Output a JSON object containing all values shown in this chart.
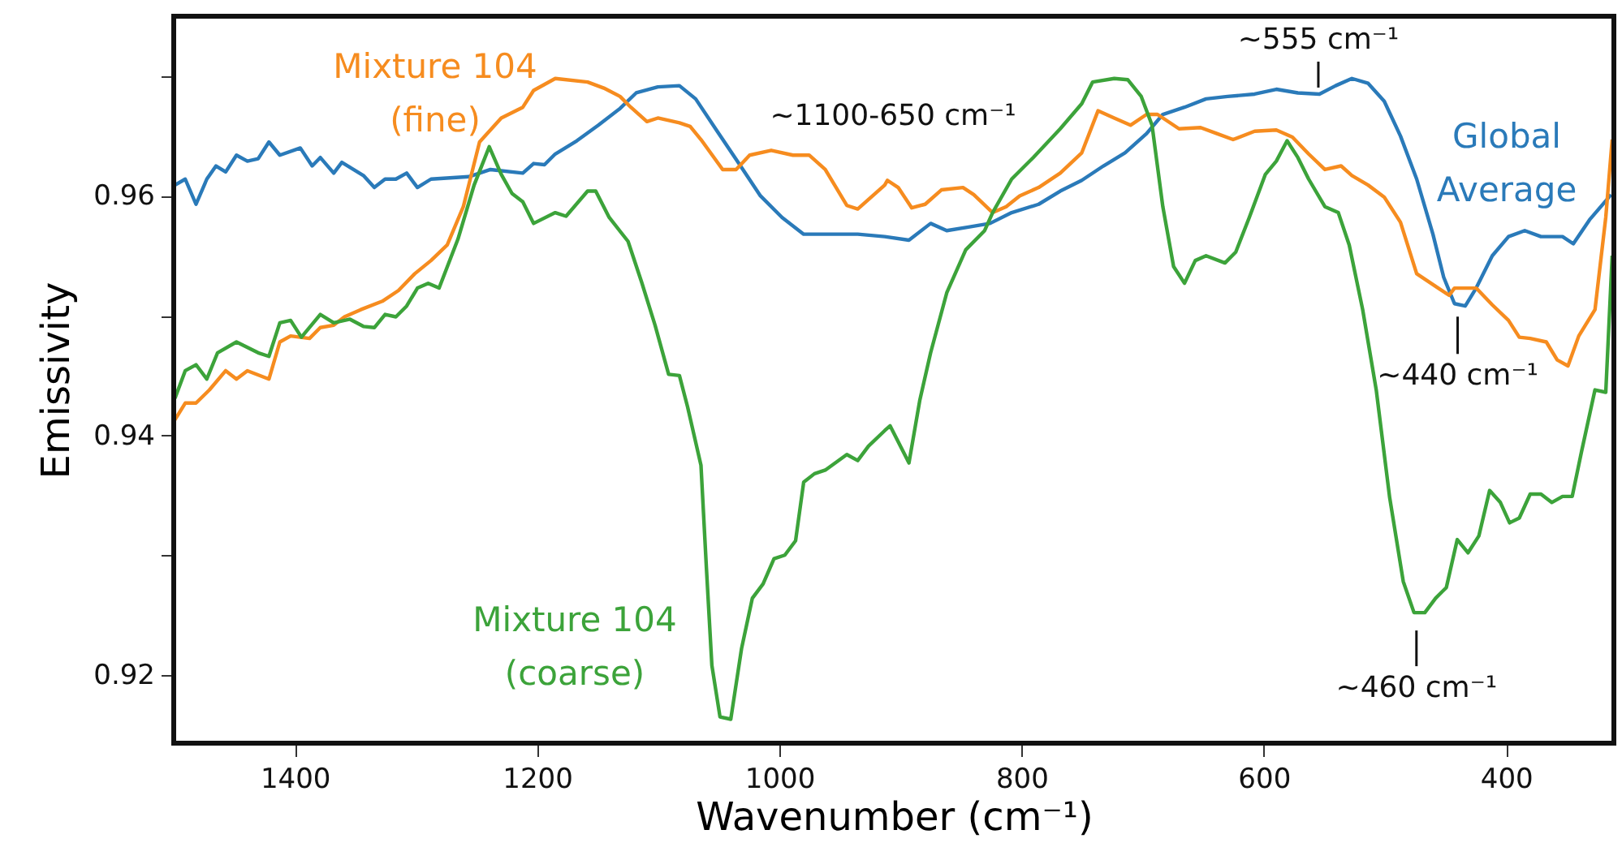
{
  "chart_data": {
    "type": "line",
    "xlabel": "Wavenumber (cm⁻¹)",
    "ylabel": "Emissivity",
    "xlim": [
      1500,
      311
    ],
    "ylim": [
      0.9143,
      0.975
    ],
    "xticks": [
      1400,
      1200,
      1000,
      800,
      600,
      400
    ],
    "yticks": [
      0.92,
      {
        "value": 0.93,
        "label": null
      },
      0.94,
      {
        "value": 0.95,
        "label": null
      },
      0.96,
      {
        "value": 0.97,
        "label": null
      }
    ],
    "grid": false,
    "marker": "none",
    "line_style": "solid",
    "annotations": [
      "~1100-650 cm⁻¹",
      {
        "text": "~555 cm⁻¹",
        "x": 555,
        "y": 0.9685
      },
      {
        "text": "~440 cm⁻¹",
        "x": 440,
        "y": 0.951
      },
      {
        "text": "~460 cm⁻¹",
        "x": 474,
        "y": 0.9252
      }
    ],
    "series": [
      {
        "name": "Global Average",
        "color": "#2a7ab9",
        "x": [
          1499.0,
          1490.5,
          1481.6,
          1472.7,
          1465.1,
          1457.1,
          1448.2,
          1439.2,
          1430.3,
          1421.4,
          1412.4,
          1395.5,
          1385.7,
          1379.0,
          1367.9,
          1361.2,
          1343.4,
          1334.4,
          1325.5,
          1316.6,
          1307.7,
          1298.8,
          1287.6,
          1256.4,
          1238.5,
          1211.8,
          1202.9,
          1193.9,
          1185.0,
          1167.2,
          1149.4,
          1131.5,
          1118.2,
          1100.3,
          1082.5,
          1069.1,
          1051.3,
          1033.4,
          1015.6,
          997.8,
          979.9,
          957.6,
          935.3,
          913.0,
          893.0,
          875.1,
          861.8,
          843.9,
          826.1,
          808.2,
          785.9,
          768.1,
          750.3,
          732.4,
          714.6,
          696.8,
          683.4,
          665.5,
          647.7,
          629.9,
          607.6,
          589.7,
          571.9,
          554.1,
          540.7,
          527.3,
          513.9,
          500.6,
          487.2,
          473.8,
          460.4,
          451.5,
          442.6,
          433.7,
          424.7,
          411.4,
          398.0,
          384.6,
          371.2,
          353.4,
          344.5,
          331.1,
          313.3
        ],
        "values": [
          0.9609,
          0.9614,
          0.9593,
          0.9614,
          0.9625,
          0.962,
          0.9634,
          0.9629,
          0.9631,
          0.9645,
          0.9634,
          0.964,
          0.9625,
          0.9632,
          0.9619,
          0.9628,
          0.9617,
          0.9607,
          0.9614,
          0.9614,
          0.9619,
          0.9607,
          0.9614,
          0.9616,
          0.9622,
          0.9619,
          0.9627,
          0.9626,
          0.9635,
          0.9646,
          0.9659,
          0.9673,
          0.9686,
          0.9691,
          0.9692,
          0.9681,
          0.9654,
          0.9627,
          0.96,
          0.9582,
          0.9568,
          0.9568,
          0.9568,
          0.9566,
          0.9563,
          0.9577,
          0.9571,
          0.9574,
          0.9577,
          0.9586,
          0.9593,
          0.9604,
          0.9613,
          0.9625,
          0.9636,
          0.9652,
          0.9668,
          0.9674,
          0.9681,
          0.9683,
          0.9685,
          0.9689,
          0.9686,
          0.9685,
          0.9692,
          0.9698,
          0.9694,
          0.9679,
          0.965,
          0.9614,
          0.9568,
          0.9532,
          0.951,
          0.9508,
          0.9523,
          0.955,
          0.9566,
          0.9571,
          0.9566,
          0.9566,
          0.956,
          0.958,
          0.9601
        ]
      },
      {
        "name": "Mixture 104 (fine)",
        "color": "#f68c1f",
        "x": [
          1499.0,
          1490.5,
          1481.6,
          1470.5,
          1457.1,
          1448.2,
          1439.2,
          1421.4,
          1412.4,
          1403.5,
          1387.9,
          1379.0,
          1367.9,
          1359.0,
          1345.6,
          1327.8,
          1314.4,
          1301.0,
          1287.6,
          1274.2,
          1260.9,
          1247.5,
          1229.6,
          1211.8,
          1202.9,
          1185.0,
          1158.3,
          1144.9,
          1131.5,
          1122.6,
          1109.3,
          1100.3,
          1082.5,
          1073.6,
          1064.7,
          1046.8,
          1035.7,
          1024.5,
          1006.7,
          988.8,
          975.4,
          962.1,
          944.3,
          935.3,
          913.0,
          910.8,
          901.9,
          890.7,
          879.6,
          866.2,
          848.4,
          839.5,
          823.9,
          812.7,
          801.6,
          785.9,
          768.1,
          750.3,
          736.9,
          723.5,
          710.1,
          696.8,
          687.8,
          670.0,
          652.2,
          638.8,
          625.4,
          607.6,
          589.7,
          576.4,
          563.0,
          549.6,
          536.2,
          527.3,
          513.9,
          500.6,
          487.2,
          473.8,
          456.0,
          447.0,
          442.6,
          424.7,
          411.4,
          398.0,
          389.1,
          380.1,
          366.8,
          357.8,
          348.9,
          340.0,
          326.6,
          317.7,
          312.4
        ],
        "values": [
          0.9413,
          0.9427,
          0.9427,
          0.9438,
          0.9454,
          0.9447,
          0.9454,
          0.9447,
          0.9478,
          0.9483,
          0.9481,
          0.949,
          0.9492,
          0.9499,
          0.9505,
          0.9512,
          0.9521,
          0.9535,
          0.9546,
          0.9559,
          0.9591,
          0.9645,
          0.9665,
          0.9674,
          0.9688,
          0.9698,
          0.9695,
          0.969,
          0.9683,
          0.9674,
          0.9662,
          0.9665,
          0.9661,
          0.9658,
          0.9647,
          0.9622,
          0.9622,
          0.9634,
          0.9638,
          0.9634,
          0.9634,
          0.9622,
          0.9592,
          0.9589,
          0.9609,
          0.9613,
          0.9607,
          0.959,
          0.9593,
          0.9605,
          0.9607,
          0.9601,
          0.9586,
          0.9591,
          0.96,
          0.9607,
          0.9619,
          0.9636,
          0.9671,
          0.9665,
          0.9659,
          0.9668,
          0.9668,
          0.9656,
          0.9657,
          0.9652,
          0.9647,
          0.9654,
          0.9655,
          0.9649,
          0.9635,
          0.9622,
          0.9625,
          0.9617,
          0.9609,
          0.9599,
          0.9578,
          0.9535,
          0.9523,
          0.9517,
          0.9523,
          0.9523,
          0.9509,
          0.9496,
          0.9482,
          0.9481,
          0.9478,
          0.9463,
          0.9458,
          0.9483,
          0.9505,
          0.9582,
          0.9647
        ]
      },
      {
        "name": "Mixture 104 (coarse)",
        "color": "#3ca33a",
        "x": [
          1499.0,
          1490.5,
          1481.6,
          1472.7,
          1463.8,
          1448.2,
          1430.3,
          1421.4,
          1412.4,
          1403.5,
          1394.6,
          1379.0,
          1367.9,
          1354.5,
          1343.4,
          1334.4,
          1325.5,
          1316.6,
          1307.7,
          1298.8,
          1289.9,
          1280.9,
          1265.3,
          1252.0,
          1239.5,
          1229.6,
          1220.7,
          1211.8,
          1202.9,
          1185.0,
          1176.1,
          1158.3,
          1151.6,
          1140.5,
          1124.9,
          1113.7,
          1102.6,
          1091.4,
          1082.5,
          1075.8,
          1064.7,
          1060.2,
          1055.7,
          1049.0,
          1040.1,
          1031.2,
          1022.3,
          1013.4,
          1004.4,
          995.5,
          986.6,
          979.9,
          971.0,
          962.1,
          944.3,
          935.3,
          926.4,
          913.0,
          908.6,
          893.0,
          884.1,
          875.1,
          861.8,
          846.1,
          830.5,
          823.9,
          808.2,
          790.4,
          768.1,
          750.3,
          741.4,
          723.5,
          712.4,
          701.2,
          692.3,
          683.4,
          674.5,
          665.5,
          656.6,
          647.7,
          632.1,
          623.2,
          612.0,
          598.7,
          589.7,
          580.8,
          571.9,
          563.0,
          549.6,
          538.5,
          529.5,
          518.4,
          507.2,
          496.1,
          484.9,
          476.0,
          467.1,
          458.2,
          449.3,
          440.3,
          431.4,
          422.5,
          413.6,
          404.7,
          397.1,
          389.1,
          380.1,
          371.2,
          362.3,
          353.4,
          345.4,
          337.8,
          326.6,
          317.7,
          312.4
        ],
        "values": [
          0.9431,
          0.9454,
          0.9459,
          0.9447,
          0.9469,
          0.9478,
          0.9469,
          0.9466,
          0.9494,
          0.9496,
          0.9482,
          0.9501,
          0.9494,
          0.9497,
          0.9491,
          0.949,
          0.9501,
          0.9499,
          0.9508,
          0.9523,
          0.9527,
          0.9523,
          0.9564,
          0.9609,
          0.9641,
          0.9618,
          0.9602,
          0.9595,
          0.9577,
          0.9586,
          0.9583,
          0.9604,
          0.9604,
          0.9582,
          0.9562,
          0.9528,
          0.9492,
          0.9451,
          0.945,
          0.9424,
          0.9375,
          0.9289,
          0.9208,
          0.9165,
          0.9163,
          0.9222,
          0.9264,
          0.9276,
          0.9297,
          0.93,
          0.9312,
          0.9361,
          0.9368,
          0.9371,
          0.9384,
          0.9379,
          0.9391,
          0.9404,
          0.9408,
          0.9377,
          0.9429,
          0.9469,
          0.9519,
          0.9555,
          0.9571,
          0.9586,
          0.9614,
          0.9632,
          0.9656,
          0.9677,
          0.9695,
          0.9698,
          0.9697,
          0.9683,
          0.9659,
          0.9591,
          0.9541,
          0.9527,
          0.9546,
          0.955,
          0.9544,
          0.9553,
          0.9582,
          0.9618,
          0.9629,
          0.9646,
          0.9632,
          0.9614,
          0.9591,
          0.9586,
          0.9559,
          0.9505,
          0.9438,
          0.9348,
          0.9278,
          0.9252,
          0.9252,
          0.9264,
          0.9273,
          0.9313,
          0.9302,
          0.9316,
          0.9354,
          0.9344,
          0.9327,
          0.9331,
          0.9351,
          0.9351,
          0.9344,
          0.9349,
          0.9349,
          0.9386,
          0.9438,
          0.9436,
          0.955
        ]
      }
    ]
  }
}
